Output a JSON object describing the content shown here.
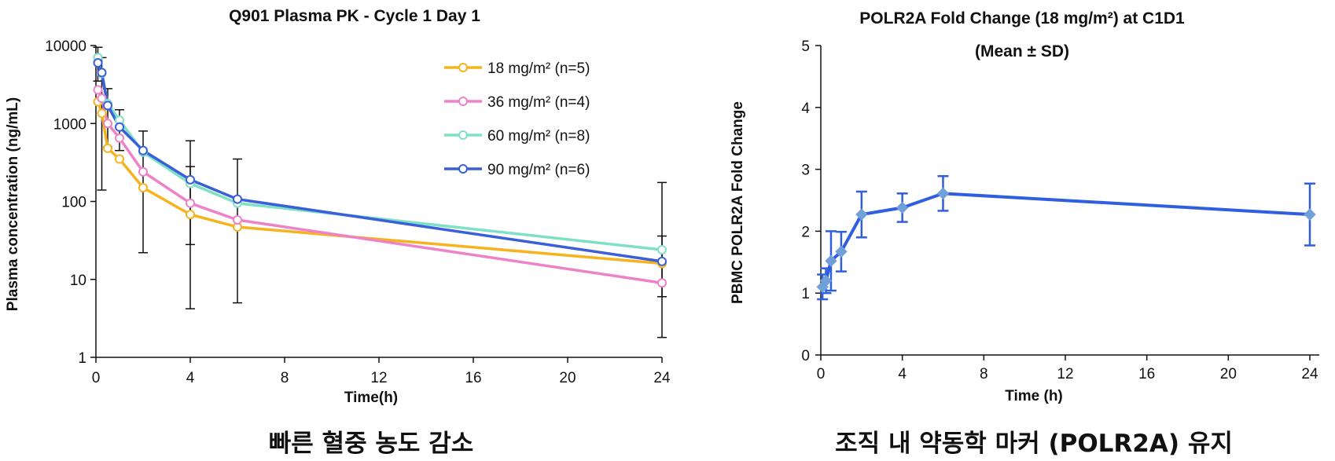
{
  "chart_data": [
    {
      "type": "line",
      "title": "Q901 Plasma PK - Cycle 1 Day 1",
      "xlabel": "Time(h)",
      "ylabel": "Plasma concentration (ng/mL)",
      "yscale": "log",
      "ylim": [
        1,
        10000
      ],
      "xlim": [
        0,
        24
      ],
      "xticks": [
        0,
        4,
        8,
        12,
        16,
        20,
        24
      ],
      "yticks": [
        1,
        10,
        100,
        1000,
        10000
      ],
      "legend_position": "top-right",
      "caption": "빠른 혈중 농도 감소",
      "series": [
        {
          "name": "18 mg/m² (n=5)",
          "color": "#F5B41F",
          "x": [
            0.083,
            0.25,
            0.5,
            1,
            2,
            4,
            6,
            24
          ],
          "y": [
            1900,
            1350,
            480,
            350,
            150,
            68,
            47,
            16
          ]
        },
        {
          "name": "36 mg/m² (n=4)",
          "color": "#EE82C8",
          "x": [
            0.083,
            0.25,
            0.5,
            1,
            2,
            4,
            6,
            24
          ],
          "y": [
            2700,
            2100,
            1000,
            650,
            240,
            95,
            58,
            9
          ]
        },
        {
          "name": "60 mg/m² (n=8)",
          "color": "#7EE0C4",
          "x": [
            0.083,
            0.25,
            0.5,
            1,
            2,
            4,
            6,
            24
          ],
          "y": [
            7000,
            4400,
            1800,
            1100,
            430,
            170,
            95,
            24
          ]
        },
        {
          "name": "90 mg/m² (n=6)",
          "color": "#3A5FD9",
          "x": [
            0.083,
            0.25,
            0.5,
            1,
            2,
            4,
            6,
            24
          ],
          "y": [
            6000,
            4500,
            1700,
            900,
            450,
            190,
            107,
            17
          ]
        }
      ],
      "error_bars": [
        {
          "x": 0.083,
          "low": 3500,
          "high": 9500
        },
        {
          "x": 0.25,
          "low": 140,
          "high": 7000
        },
        {
          "x": 0.5,
          "low": 500,
          "high": 2800
        },
        {
          "x": 1,
          "low": 450,
          "high": 1500
        },
        {
          "x": 2,
          "low": 22,
          "high": 800
        },
        {
          "x": 4,
          "low": 4.2,
          "high": 600
        },
        {
          "x": 4,
          "low": 28,
          "high": 280
        },
        {
          "x": 6,
          "low": 5,
          "high": 350
        },
        {
          "x": 24,
          "low": 1.8,
          "high": 175
        },
        {
          "x": 24,
          "low": 6,
          "high": 36
        }
      ]
    },
    {
      "type": "line",
      "title": "POLR2A Fold Change (18 mg/m²) at C1D1",
      "title_line2": "(Mean ± SD)",
      "xlabel": "Time (h)",
      "ylabel": "PBMC POLR2A Fold Change",
      "ylim": [
        0,
        5
      ],
      "xlim": [
        0,
        24
      ],
      "xticks": [
        0,
        4,
        8,
        12,
        16,
        20,
        24
      ],
      "yticks": [
        0,
        1,
        2,
        3,
        4,
        5
      ],
      "caption": "조직 내 약동학 마커 (POLR2A) 유지",
      "series": [
        {
          "name": "POLR2A",
          "color": "#2F5FE0",
          "marker_color": "#6FA0D8",
          "x": [
            0.083,
            0.25,
            0.5,
            1,
            2,
            4,
            6,
            24
          ],
          "y": [
            1.1,
            1.2,
            1.52,
            1.67,
            2.27,
            2.38,
            2.61,
            2.27
          ],
          "sd": [
            0.2,
            0.2,
            0.48,
            0.32,
            0.37,
            0.23,
            0.28,
            0.5
          ]
        }
      ]
    }
  ]
}
